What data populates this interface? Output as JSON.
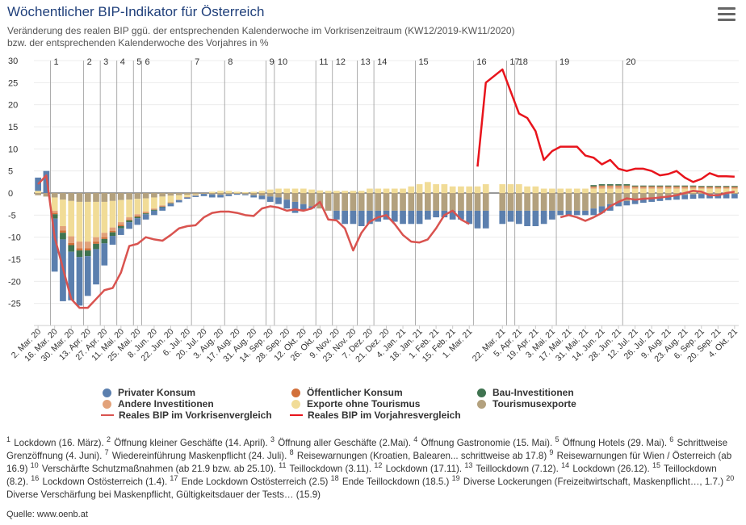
{
  "title": "Wöchentlicher BIP-Indikator für Österreich",
  "subtitle_line1": "Veränderung des realen BIP ggü. der entsprechenden Kalenderwoche im Vorkrisenzeitraum (KW12/2019-KW11/2020)",
  "subtitle_line2": "bzw. der entsprechenden Kalenderwoche des Vorjahres in %",
  "menu_icon": "hamburger-menu-icon",
  "source": "Quelle: www.oenb.at",
  "colors": {
    "privater_konsum": "#5b7fae",
    "oeffentlicher_konsum": "#d2703a",
    "bau": "#3f7350",
    "andere_inv": "#e2a27a",
    "exporte": "#f1dc97",
    "tourismus": "#b3a17e",
    "line_vorkrise": "#d9534f",
    "line_vorjahr": "#e8141c"
  },
  "chart_data": {
    "type": "bar",
    "ylim": [
      -30,
      30
    ],
    "yticks": [
      30,
      25,
      20,
      15,
      10,
      5,
      0,
      -5,
      -10,
      -15,
      -20,
      -25
    ],
    "xtick_labels": [
      "2. Mar. 20",
      "16. Mar. 20",
      "30. Mar. 20",
      "13. Apr. 20",
      "27. Apr. 20",
      "11. Mai. 20",
      "25. Mai. 20",
      "8. Jun. 20",
      "22. Jun. 20",
      "6. Jul. 20",
      "20. Jul. 20",
      "3. Aug. 20",
      "17. Aug. 20",
      "31. Aug. 20",
      "14. Sep. 20",
      "28. Sep. 20",
      "12. Okt. 20",
      "26. Okt. 20",
      "9. Nov. 20",
      "23. Nov. 20",
      "7. Dez. 20",
      "21. Dez. 20",
      "4. Jan. 21",
      "18. Jan. 21",
      "1. Feb. 21",
      "15. Feb. 21",
      "1. Mar. 21",
      "22. Mar. 21",
      "5. Apr. 21",
      "19. Apr. 21",
      "3. Mai. 21",
      "17. Mai. 21",
      "31. Mai. 21",
      "14. Jun. 21",
      "28. Jun. 21",
      "12. Jul. 21",
      "26. Jul. 21",
      "9. Aug. 21",
      "23. Aug. 21",
      "6. Sep. 21",
      "20. Sep. 21",
      "4. Okt. 21"
    ],
    "xtick_weeks": [
      0,
      2,
      4,
      6,
      8,
      10,
      12,
      14,
      16,
      18,
      20,
      22,
      24,
      26,
      28,
      30,
      32,
      34,
      36,
      38,
      40,
      42,
      44,
      46,
      48,
      50,
      52,
      55,
      57,
      59,
      61,
      63,
      65,
      67,
      69,
      71,
      73,
      75,
      77,
      79,
      81,
      83
    ],
    "gap_after_week": 54,
    "events": [
      {
        "label": "1",
        "week": 2
      },
      {
        "label": "2",
        "week": 6
      },
      {
        "label": "3",
        "week": 8
      },
      {
        "label": "4",
        "week": 10
      },
      {
        "label": "5",
        "week": 12
      },
      {
        "label": "6",
        "week": 13
      },
      {
        "label": "7",
        "week": 19
      },
      {
        "label": "8",
        "week": 23
      },
      {
        "label": "9",
        "week": 28
      },
      {
        "label": "10",
        "week": 29
      },
      {
        "label": "11",
        "week": 34
      },
      {
        "label": "12",
        "week": 36
      },
      {
        "label": "13",
        "week": 39
      },
      {
        "label": "14",
        "week": 41
      },
      {
        "label": "15",
        "week": 46
      },
      {
        "label": "16",
        "week": 53
      },
      {
        "label": "17",
        "week": 56
      },
      {
        "label": "18",
        "week": 57
      },
      {
        "label": "19",
        "week": 62
      },
      {
        "label": "20",
        "week": 70
      }
    ],
    "series": [
      {
        "key": "tourismus",
        "name": "Tourismusexporte",
        "kind": "bar",
        "values": [
          -0.5,
          -0.8,
          -1,
          -1.5,
          -1.8,
          -2,
          -2,
          -2,
          -2,
          -1.8,
          -1.6,
          -1.5,
          -1.3,
          -1.2,
          -1,
          -0.8,
          -0.6,
          -0.5,
          -0.4,
          -0.3,
          -0.2,
          -0.3,
          -0.4,
          -0.3,
          -0.2,
          -0.3,
          -0.5,
          -0.6,
          -0.8,
          -1,
          -1.5,
          -2,
          -2.5,
          -3,
          -3.5,
          -4,
          -4,
          -4,
          -4,
          -4,
          -4,
          -4,
          -4,
          -4,
          -4,
          -4,
          -4,
          -4,
          -4,
          -4,
          -4,
          -4,
          -4,
          -4,
          -4,
          -4,
          -4,
          -4,
          -4,
          -4,
          -4,
          -4,
          -4,
          -4,
          -4,
          -4,
          -3.5,
          -3,
          -2.5,
          -2,
          -1.8,
          -1.5,
          -1.2,
          -1,
          -0.8,
          -0.6,
          -0.5,
          -0.4,
          -0.3,
          -0.2,
          -0.2,
          -0.2,
          -0.2,
          -0.2
        ]
      },
      {
        "key": "exporte",
        "name": "Exporte ohne Tourismus",
        "kind": "bar",
        "values": [
          0.5,
          0,
          -3,
          -6,
          -8,
          -9,
          -9,
          -8,
          -7,
          -6,
          -5,
          -4,
          -3.5,
          -3,
          -2.5,
          -2,
          -1.5,
          -1,
          -0.5,
          -0.2,
          0,
          0.3,
          0.5,
          0.5,
          0.3,
          0.2,
          0.3,
          0.5,
          0.8,
          1,
          1,
          1,
          1,
          0.8,
          0.6,
          0.5,
          0.5,
          0.5,
          0.5,
          0.5,
          1,
          1,
          1,
          1,
          1,
          1.5,
          2,
          2.5,
          2,
          2,
          1.5,
          1.5,
          1.5,
          1.5,
          2,
          2,
          2,
          2,
          1.5,
          1.5,
          1,
          1,
          1,
          1,
          1,
          1,
          1,
          1,
          1,
          1,
          1,
          1,
          1,
          1,
          1,
          1,
          1,
          1,
          1,
          1,
          1,
          1,
          1,
          1
        ]
      },
      {
        "key": "andere_inv",
        "name": "Andere Investitionen",
        "kind": "bar",
        "values": [
          0,
          0,
          -0.5,
          -1,
          -1.5,
          -1.5,
          -1.5,
          -1,
          -1,
          -0.8,
          -0.6,
          -0.5,
          -0.4,
          -0.3,
          -0.2,
          -0.2,
          -0.2,
          -0.1,
          -0.1,
          -0.1,
          0,
          0,
          0,
          0,
          0,
          0,
          0,
          0,
          0,
          0,
          0,
          0,
          0,
          0,
          0,
          0,
          0,
          0,
          0,
          0,
          0,
          0,
          0,
          0,
          0,
          0,
          0,
          0,
          0,
          0,
          0,
          0,
          0,
          0,
          0,
          0,
          0,
          0,
          0,
          0,
          0,
          0,
          0,
          0,
          0,
          0,
          0.3,
          0.5,
          0.5,
          0.5,
          0.5,
          0.3,
          0.3,
          0.3,
          0.3,
          0.3,
          0.3,
          0.3,
          0.3,
          0.2,
          0.2,
          0.2,
          0.2,
          0.2
        ]
      },
      {
        "key": "oeffentlicher_konsum",
        "name": "Öffentlicher Konsum",
        "kind": "bar",
        "values": [
          0,
          0,
          -0.3,
          -0.5,
          -0.5,
          -0.5,
          -0.5,
          -0.5,
          -0.4,
          -0.3,
          -0.3,
          -0.2,
          -0.2,
          -0.1,
          -0.1,
          -0.1,
          0,
          0,
          0,
          0,
          0,
          0,
          0,
          0,
          0,
          0,
          0,
          0,
          0,
          0,
          0,
          0,
          0,
          0,
          0,
          0,
          0,
          0,
          0,
          0,
          0,
          0,
          0,
          0,
          0,
          0,
          0,
          0,
          0,
          0,
          0,
          0,
          0,
          0,
          0,
          0,
          0,
          0,
          0,
          0,
          0,
          0,
          0,
          0,
          0,
          0,
          0.2,
          0.2,
          0.2,
          0.2,
          0.2,
          0.2,
          0.2,
          0.2,
          0.2,
          0.2,
          0.2,
          0.2,
          0.2,
          0.2,
          0.2,
          0.2,
          0.2,
          0.2
        ]
      },
      {
        "key": "bau",
        "name": "Bau-Investitionen",
        "kind": "bar",
        "values": [
          0,
          0,
          -1,
          -1.5,
          -1.5,
          -1.5,
          -1.3,
          -1.2,
          -1,
          -0.8,
          -0.5,
          -0.4,
          -0.3,
          -0.2,
          -0.2,
          -0.1,
          -0.1,
          0,
          0,
          0,
          0,
          0,
          0,
          0,
          0,
          0,
          0,
          0,
          0,
          0,
          0,
          0,
          0,
          0,
          0,
          0,
          0,
          0,
          0,
          0,
          0,
          0,
          0,
          0,
          0,
          0,
          0,
          0,
          0,
          0,
          0,
          0,
          0,
          0,
          0,
          0,
          0,
          0,
          0,
          0,
          0,
          0,
          0,
          0,
          0,
          0,
          0.3,
          0.3,
          0.3,
          0.3,
          0.3,
          0.2,
          0.2,
          0.2,
          0.2,
          0.2,
          0.2,
          0.2,
          0.2,
          0.2,
          0.2,
          0.2,
          0.2,
          0.2
        ]
      },
      {
        "key": "privater_konsum",
        "name": "Privater Konsum",
        "kind": "bar",
        "values": [
          3,
          5,
          -12,
          -14,
          -11,
          -11,
          -9,
          -8,
          -5,
          -2,
          -1.5,
          -1.5,
          -1.5,
          -1.2,
          -1,
          -0.8,
          -0.6,
          -0.5,
          -0.3,
          -0.3,
          -0.5,
          -0.7,
          -0.6,
          -0.4,
          -0.2,
          -0.2,
          -0.5,
          -0.8,
          -1.2,
          -1.5,
          -2,
          -2.5,
          -1.5,
          -0.5,
          0,
          0,
          -2,
          -3,
          -3,
          -3.5,
          -3,
          -2.5,
          -2,
          -2.5,
          -3,
          -3,
          -3,
          -2,
          -1.5,
          -1.5,
          -2,
          -2,
          -3,
          -4,
          -4,
          -3,
          -2.5,
          -3,
          -3.5,
          -3.5,
          -3,
          -2,
          -1,
          -1,
          -1,
          -1,
          -1.5,
          -1.5,
          -1.5,
          -1,
          -1,
          -1,
          -1,
          -1,
          -1,
          -1,
          -1,
          -1,
          -1,
          -1,
          -1,
          -1,
          -1,
          -1
        ]
      },
      {
        "key": "vorkrise",
        "name": "Reales BIP im Vorkrisenvergleich",
        "kind": "line",
        "values": [
          2,
          4,
          -10,
          -17,
          -24,
          -26,
          -26,
          -24,
          -22,
          -21.5,
          -18,
          -12,
          -11.5,
          -10,
          -10.5,
          -10.8,
          -9.5,
          -8,
          -7.5,
          -7.3,
          -5.5,
          -4.5,
          -4.2,
          -4.2,
          -4.5,
          -5,
          -5.2,
          -3.5,
          -3,
          -3.3,
          -4,
          -3.7,
          -4,
          -3.5,
          -2,
          -6,
          -6.2,
          -8,
          -13,
          -9,
          -6.5,
          -5.5,
          -5,
          -7,
          -9.5,
          -11,
          -11.2,
          -10.5,
          -8,
          -5,
          -4,
          -6,
          -7,
          null,
          null,
          null,
          null,
          null,
          null,
          null,
          null,
          null,
          -5.5,
          -5,
          -5.5,
          -6.3,
          -5.5,
          -4.5,
          -3,
          -2,
          -1.2,
          -1.5,
          -1.3,
          -1.2,
          -1,
          -0.8,
          -0.5,
          0,
          0.5,
          0.3,
          -0.5,
          -0.5,
          0,
          0.3
        ]
      },
      {
        "key": "vorjahr",
        "name": "Reales BIP im Vorjahresvergleich",
        "kind": "line",
        "values": [
          null,
          null,
          null,
          null,
          null,
          null,
          null,
          null,
          null,
          null,
          null,
          null,
          null,
          null,
          null,
          null,
          null,
          null,
          null,
          null,
          null,
          null,
          null,
          null,
          null,
          null,
          null,
          null,
          null,
          null,
          null,
          null,
          null,
          null,
          null,
          null,
          null,
          null,
          null,
          null,
          null,
          null,
          null,
          null,
          null,
          null,
          null,
          null,
          null,
          null,
          null,
          null,
          null,
          6,
          25,
          28,
          23,
          18,
          17,
          14,
          7.5,
          9.5,
          10.5,
          10.5,
          10.5,
          8.5,
          8,
          6.5,
          7.5,
          5.5,
          5,
          5.5,
          5.5,
          5,
          4,
          4.3,
          5,
          3.5,
          2.5,
          3.2,
          4.5,
          3.8,
          3.8,
          3.7
        ]
      }
    ]
  },
  "legend": {
    "privater_konsum": "Privater Konsum",
    "oeffentlicher_konsum": "Öffentlicher Konsum",
    "bau": "Bau-Investitionen",
    "andere_inv": "Andere Investitionen",
    "exporte": "Exporte ohne Tourismus",
    "tourismus": "Tourismusexporte",
    "vorkrise": "Reales BIP im Vorkrisenvergleich",
    "vorjahr": "Reales BIP im Vorjahresvergleich"
  },
  "notes": [
    {
      "n": "1",
      "text": "Lockdown (16. März)."
    },
    {
      "n": "2",
      "text": "Öffnung kleiner Geschäfte (14. April)."
    },
    {
      "n": "3",
      "text": "Öffnung aller Geschäfte (2.Mai)."
    },
    {
      "n": "4",
      "text": "Öffnung Gastronomie (15. Mai)."
    },
    {
      "n": "5",
      "text": "Öffnung Hotels (29. Mai)."
    },
    {
      "n": "6",
      "text": "Schrittweise Grenzöffnung (4. Juni)."
    },
    {
      "n": "7",
      "text": "Wiedereinführung Maskenpflicht (24. Juli)."
    },
    {
      "n": "8",
      "text": "Reisewarnungen (Kroatien, Balearen... schrittweise ab 17.8)"
    },
    {
      "n": "9",
      "text": "Reisewarnungen für Wien / Österreich (ab 16.9)"
    },
    {
      "n": "10",
      "text": "Verschärfte Schutzmaßnahmen (ab 21.9 bzw. ab 25.10)."
    },
    {
      "n": "11",
      "text": "Teillockdown (3.11)."
    },
    {
      "n": "12",
      "text": "Lockdown (17.11)."
    },
    {
      "n": "13",
      "text": "Teillockdown (7.12)."
    },
    {
      "n": "14",
      "text": "Lockdown (26.12)."
    },
    {
      "n": "15",
      "text": "Teillockdown (8.2)."
    },
    {
      "n": "16",
      "text": "Lockdown Ostösterreich (1.4)."
    },
    {
      "n": "17",
      "text": "Ende Lockdown Ostösterreich (2.5)"
    },
    {
      "n": "18",
      "text": "Ende Teillockdown (18.5.)"
    },
    {
      "n": "19",
      "text": "Diverse Lockerungen (Freizeitwirtschaft, Maskenpflicht…, 1.7.)"
    },
    {
      "n": "20",
      "text": "Diverse Verschärfung bei Maskenpflicht, Gültigkeitsdauer der Tests… (15.9)"
    }
  ]
}
